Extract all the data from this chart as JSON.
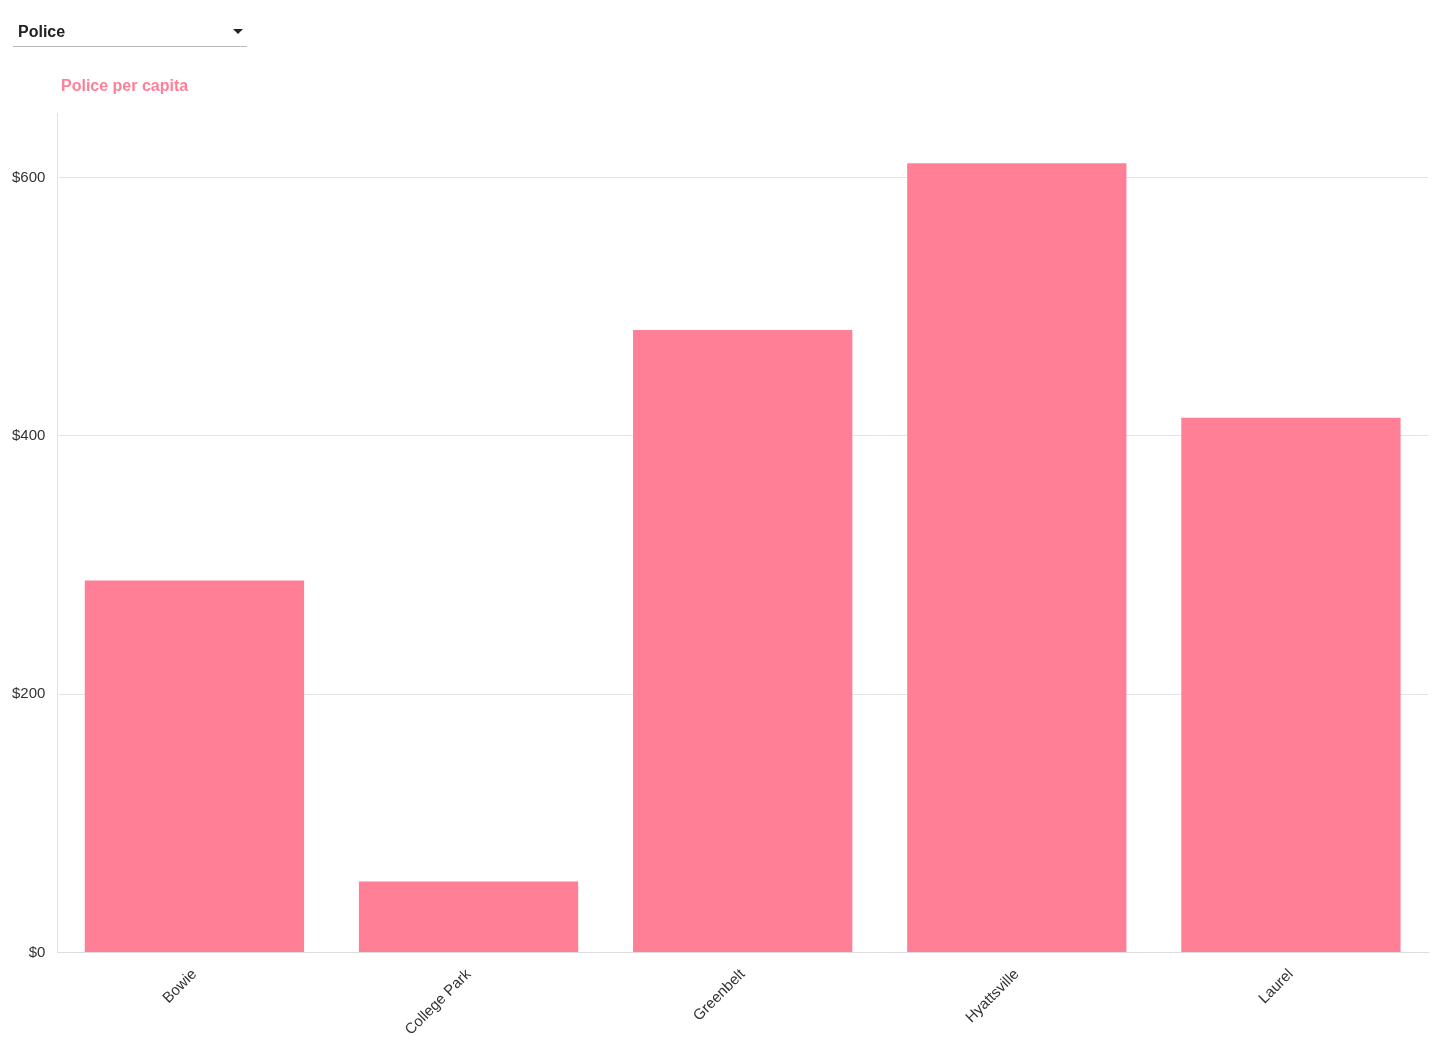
{
  "chart_data": {
    "type": "bar",
    "title": "Police per capita",
    "annotations": [
      "Police"
    ],
    "categories": [
      "Bowie",
      "College Park",
      "Greenbelt",
      "Hyattsville",
      "Laurel"
    ],
    "values": [
      288,
      55,
      482,
      611,
      414
    ],
    "color": "#ff7f97",
    "ylim": [
      0,
      650
    ],
    "yticks": [
      {
        "value": 0,
        "label": "$0"
      },
      {
        "value": 200,
        "label": "$200"
      },
      {
        "value": 400,
        "label": "$400"
      },
      {
        "value": 600,
        "label": "$600"
      }
    ],
    "grid": "y",
    "legend": false
  }
}
